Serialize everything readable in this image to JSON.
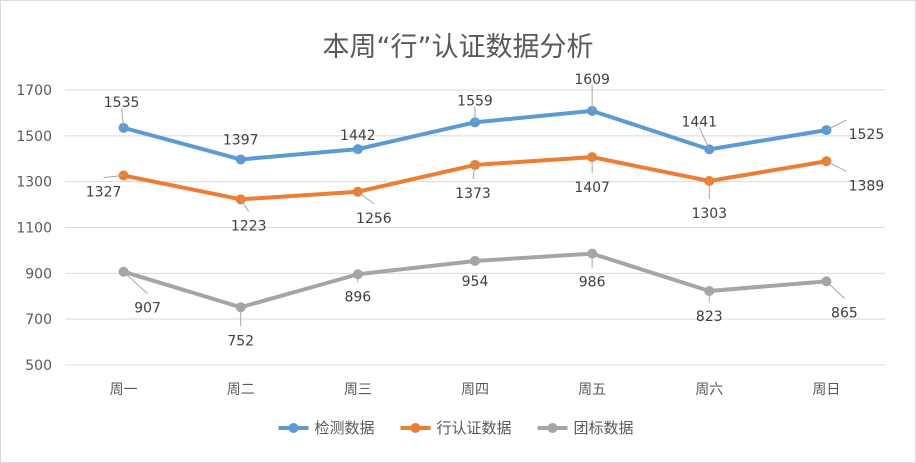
{
  "chart_data": {
    "type": "line",
    "title": "本周“行”认证数据分析",
    "categories": [
      "周一",
      "周二",
      "周三",
      "周四",
      "周五",
      "周六",
      "周日"
    ],
    "ylim": [
      500,
      1700
    ],
    "yticks": [
      500,
      700,
      900,
      1100,
      1300,
      1500,
      1700
    ],
    "grid": true,
    "legend_position": "bottom",
    "series": [
      {
        "name": "检测数据",
        "color": "#5b9bd5",
        "values": [
          1535,
          1397,
          1442,
          1559,
          1609,
          1441,
          1525
        ]
      },
      {
        "name": "行认证数据",
        "color": "#ed7d31",
        "values": [
          1327,
          1223,
          1256,
          1373,
          1407,
          1303,
          1389
        ]
      },
      {
        "name": "团标数据",
        "color": "#a5a5a5",
        "values": [
          907,
          752,
          896,
          954,
          986,
          823,
          865
        ]
      }
    ]
  }
}
